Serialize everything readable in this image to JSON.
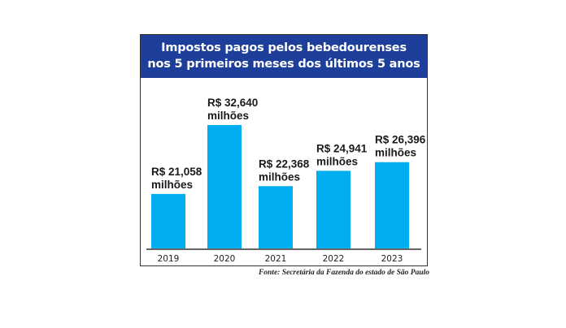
{
  "chart_data": {
    "type": "bar",
    "title_lines": [
      "Impostos pagos pelos bebedourenses",
      "nos 5 primeiros meses dos últimos 5 anos"
    ],
    "categories": [
      "2019",
      "2020",
      "2021",
      "2022",
      "2023"
    ],
    "values": [
      21.058,
      32.64,
      22.368,
      24.941,
      26.396
    ],
    "data_labels": [
      "R$ 21,058",
      "R$ 32,640",
      "R$ 22,368",
      "R$ 24,941",
      "R$ 26,396"
    ],
    "unit_label": "milhões",
    "ylim": [
      11.9,
      34
    ],
    "grid": false,
    "bar_color": "#00aeef",
    "header_color": "#1d3f9b",
    "source": "Fonte: Secretária da Fazenda do estado de São Paulo"
  }
}
